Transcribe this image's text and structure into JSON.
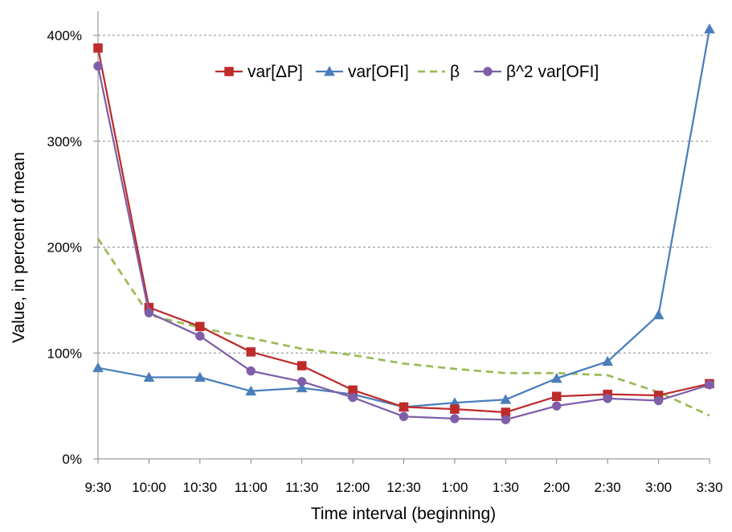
{
  "chart_data": {
    "type": "line",
    "title": "",
    "xlabel": "Time interval (beginning)",
    "ylabel": "Value, in percent of mean",
    "ylim": [
      0,
      400
    ],
    "ytick_step": 100,
    "ytick_labels": [
      "0%",
      "100%",
      "200%",
      "300%",
      "400%"
    ],
    "grid": "horizontal-dashed",
    "legend_position": "top-center",
    "categories": [
      "9:30",
      "10:00",
      "10:30",
      "11:00",
      "11:30",
      "12:00",
      "12:30",
      "1:00",
      "1:30",
      "2:00",
      "2:30",
      "3:00",
      "3:30"
    ],
    "series": [
      {
        "name": "var[ΔP]",
        "color": "#be2b2b",
        "marker": "square",
        "line_style": "solid",
        "values": [
          388,
          143,
          125,
          101,
          88,
          65,
          49,
          47,
          44,
          59,
          61,
          60,
          71
        ]
      },
      {
        "name": "var[OFI]",
        "color": "#4a7ebb",
        "marker": "triangle",
        "line_style": "solid",
        "values": [
          86,
          77,
          77,
          64,
          67,
          61,
          49,
          53,
          56,
          76,
          92,
          136,
          406
        ]
      },
      {
        "name": "β",
        "color": "#9bbb59",
        "marker": "none",
        "line_style": "dashed",
        "values": [
          208,
          136,
          124,
          114,
          104,
          98,
          90,
          85,
          81,
          81,
          79,
          63,
          41
        ]
      },
      {
        "name": "β^2 var[OFI]",
        "color": "#7f5ea8",
        "marker": "circle",
        "line_style": "solid",
        "values": [
          371,
          138,
          116,
          83,
          73,
          58,
          40,
          38,
          37,
          50,
          57,
          55,
          70
        ]
      }
    ]
  }
}
